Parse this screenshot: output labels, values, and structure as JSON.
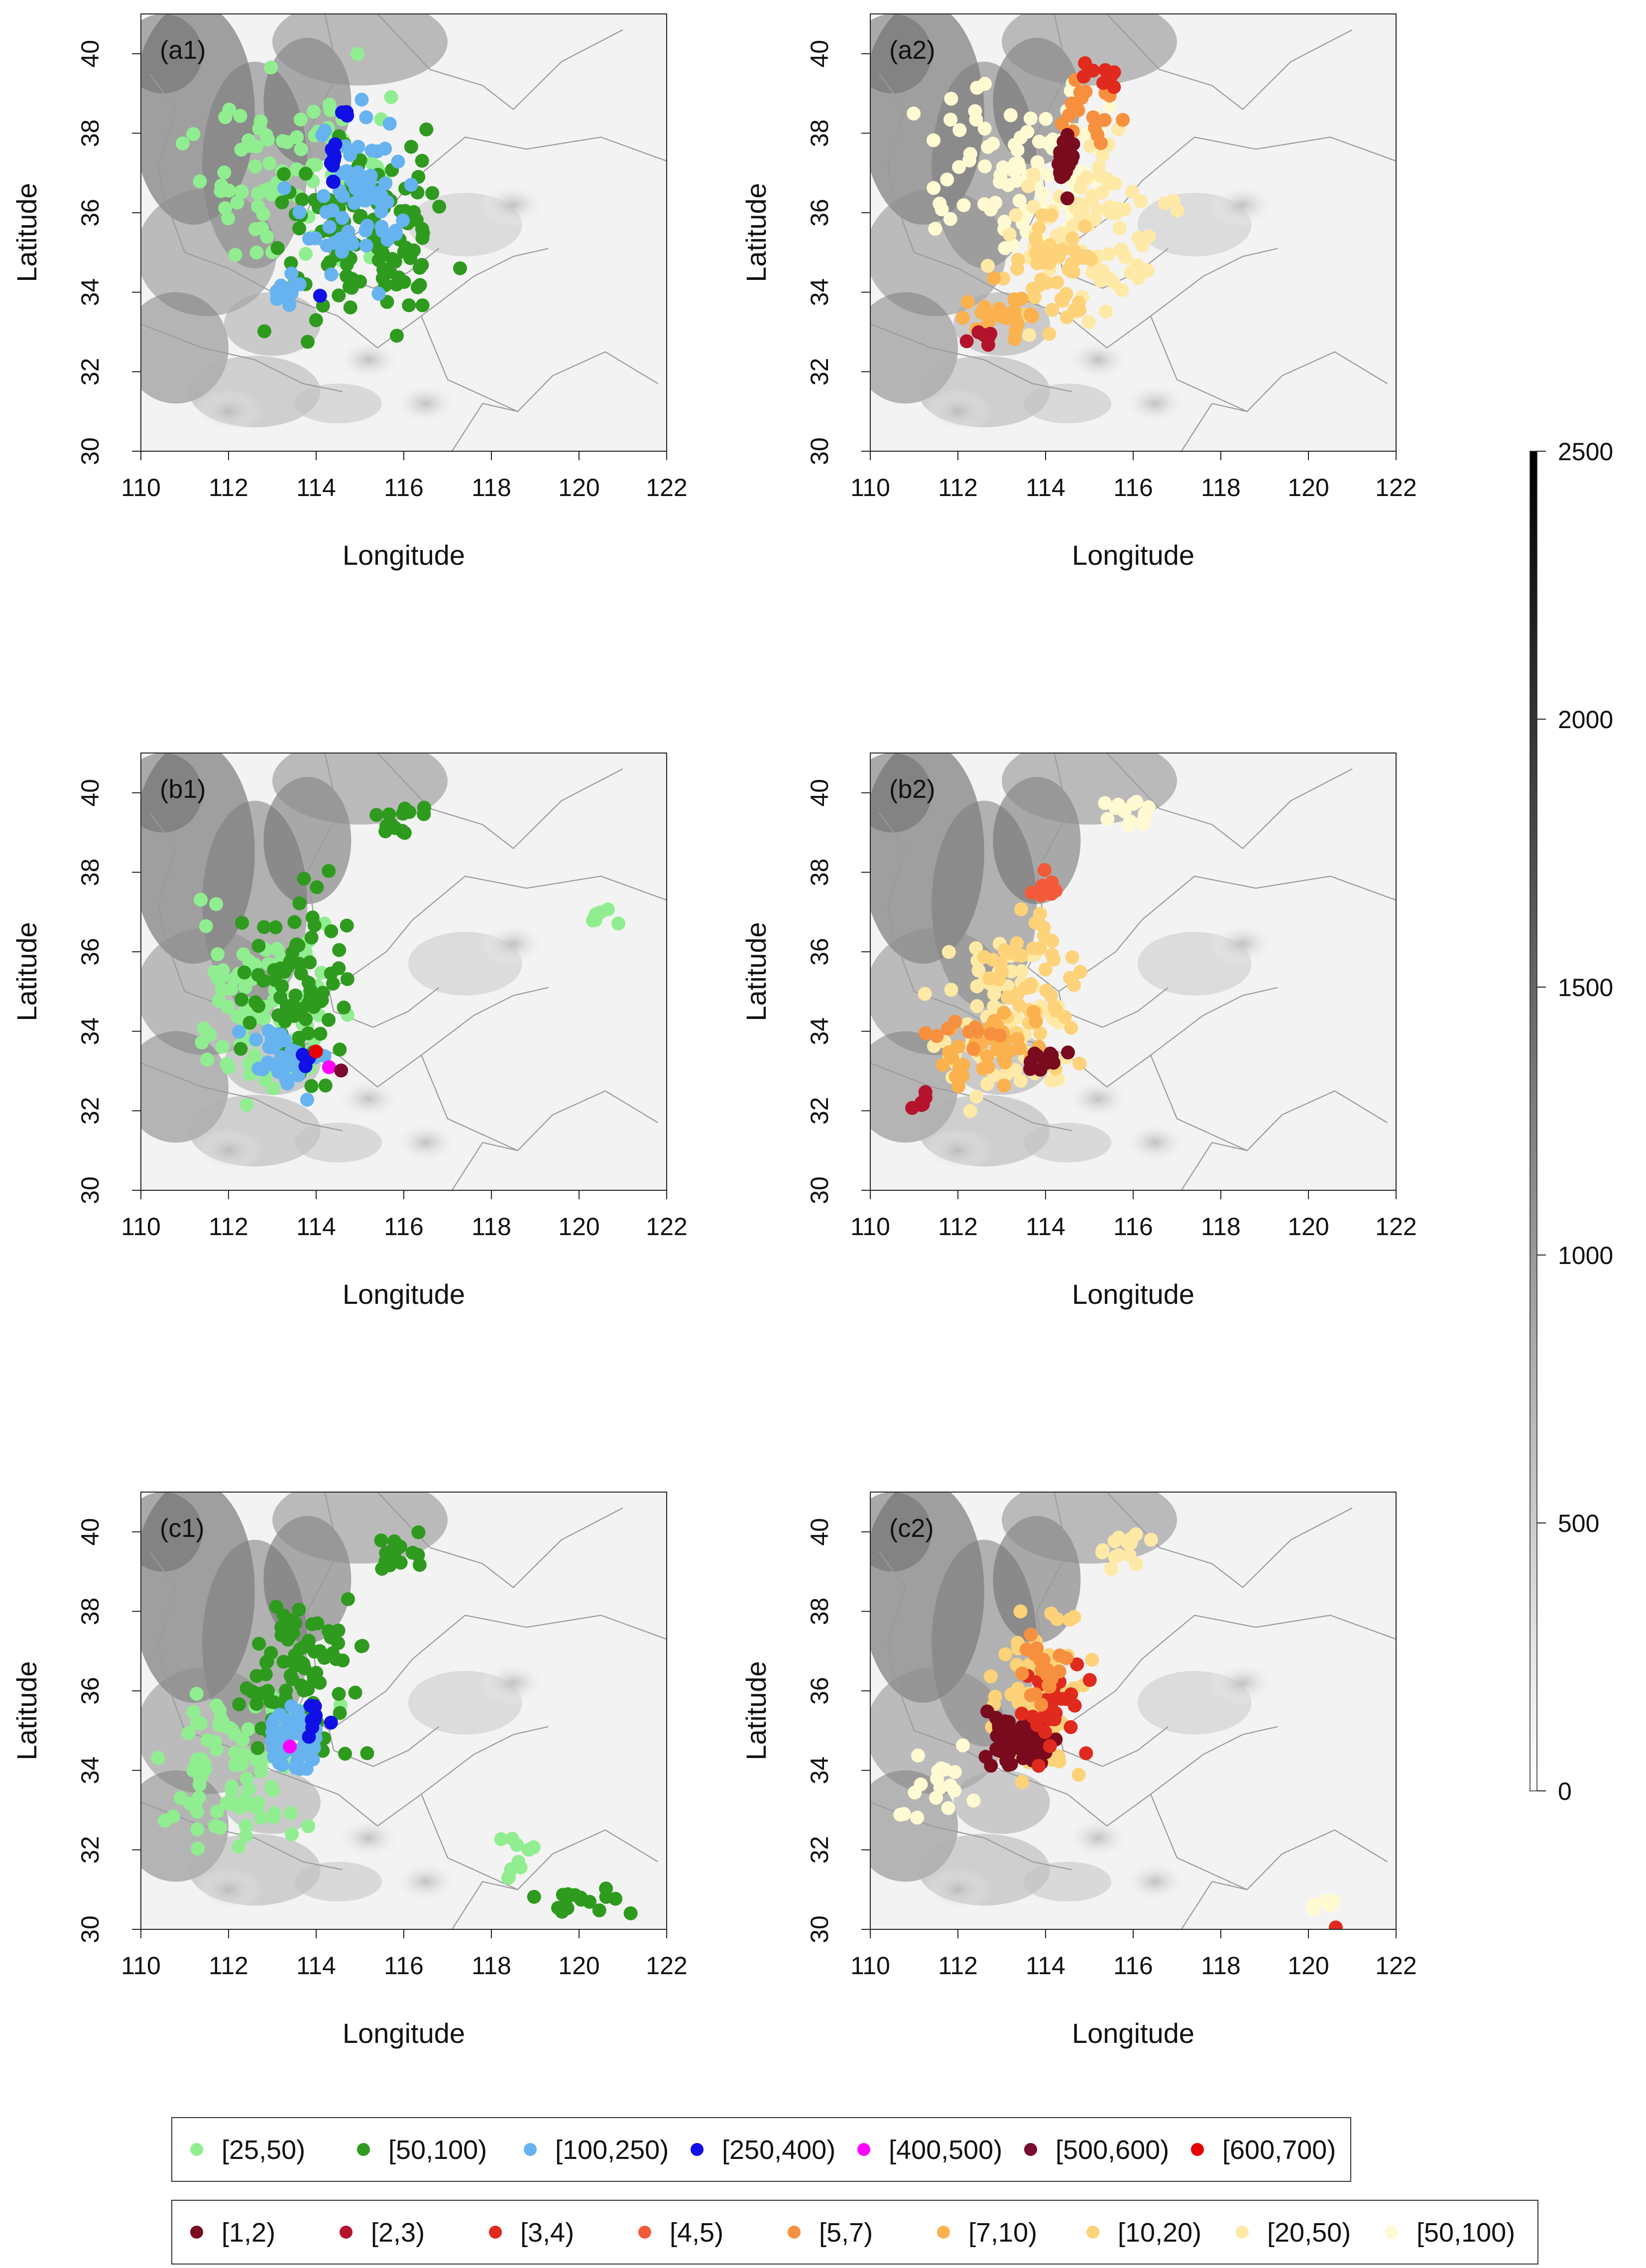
{
  "figure": {
    "x_label": "Longitude",
    "y_label": "Latitude",
    "x_ticks": [
      "110",
      "112",
      "114",
      "116",
      "118",
      "120",
      "122"
    ],
    "y_ticks": [
      "30",
      "32",
      "34",
      "36",
      "38",
      "40"
    ]
  },
  "chart_data": [
    {
      "type": "scatter",
      "id": "a1",
      "title": "(a1)",
      "xlabel": "Longitude",
      "ylabel": "Latitude",
      "xlim": [
        110,
        122
      ],
      "ylim": [
        30,
        41
      ],
      "legend": "legend1",
      "background": "elevation-greyscale"
    },
    {
      "type": "scatter",
      "id": "a2",
      "title": "(a2)",
      "xlabel": "Longitude",
      "ylabel": "Latitude",
      "xlim": [
        110,
        122
      ],
      "ylim": [
        30,
        41
      ],
      "legend": "legend2",
      "background": "elevation-greyscale"
    },
    {
      "type": "scatter",
      "id": "b1",
      "title": "(b1)",
      "xlabel": "Longitude",
      "ylabel": "Latitude",
      "xlim": [
        110,
        122
      ],
      "ylim": [
        30,
        41
      ],
      "legend": "legend1",
      "background": "elevation-greyscale"
    },
    {
      "type": "scatter",
      "id": "b2",
      "title": "(b2)",
      "xlabel": "Longitude",
      "ylabel": "Latitude",
      "xlim": [
        110,
        122
      ],
      "ylim": [
        30,
        41
      ],
      "legend": "legend2",
      "background": "elevation-greyscale"
    },
    {
      "type": "scatter",
      "id": "c1",
      "title": "(c1)",
      "xlabel": "Longitude",
      "ylabel": "Latitude",
      "xlim": [
        110,
        122
      ],
      "ylim": [
        30,
        41
      ],
      "legend": "legend1",
      "background": "elevation-greyscale"
    },
    {
      "type": "scatter",
      "id": "c2",
      "title": "(c2)",
      "xlabel": "Longitude",
      "ylabel": "Latitude",
      "xlim": [
        110,
        122
      ],
      "ylim": [
        30,
        41
      ],
      "legend": "legend2",
      "background": "elevation-greyscale"
    }
  ],
  "colorbar": {
    "range": [
      0,
      2500
    ],
    "ticks": [
      "0",
      "500",
      "1000",
      "1500",
      "2000",
      "2500"
    ],
    "colors": [
      "#ffffff",
      "#000000"
    ]
  },
  "legend1": [
    {
      "label": "[25,50)",
      "color": "#90ee90"
    },
    {
      "label": "[50,100)",
      "color": "#2e9a1e"
    },
    {
      "label": "[100,250)",
      "color": "#66b3f0"
    },
    {
      "label": "[250,400)",
      "color": "#1010e6"
    },
    {
      "label": "[400,500)",
      "color": "#ff00ff"
    },
    {
      "label": "[500,600)",
      "color": "#7a0a2e"
    },
    {
      "label": "[600,700)",
      "color": "#e60000"
    }
  ],
  "legend2": [
    {
      "label": "[1,2)",
      "color": "#7a0a1e"
    },
    {
      "label": "[2,3)",
      "color": "#b5122e"
    },
    {
      "label": "[3,4)",
      "color": "#e02a1e"
    },
    {
      "label": "[4,5)",
      "color": "#f25a3a"
    },
    {
      "label": "[5,7)",
      "color": "#f7903e"
    },
    {
      "label": "[7,10)",
      "color": "#fbb14e"
    },
    {
      "label": "[10,20)",
      "color": "#fdd279"
    },
    {
      "label": "[20,50)",
      "color": "#fee9a6"
    },
    {
      "label": "[50,100)",
      "color": "#fffad2"
    }
  ]
}
